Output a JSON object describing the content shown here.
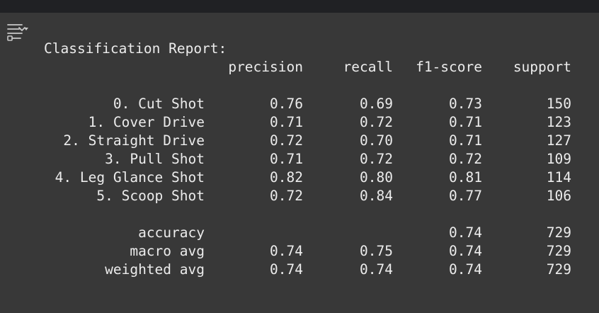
{
  "title": "Classification Report:",
  "header": {
    "precision": "precision",
    "recall": "recall",
    "f1": "f1-score",
    "support": "support"
  },
  "rows": [
    {
      "label": "0. Cut Shot",
      "precision": "0.76",
      "recall": "0.69",
      "f1": "0.73",
      "support": "150"
    },
    {
      "label": "1. Cover Drive",
      "precision": "0.71",
      "recall": "0.72",
      "f1": "0.71",
      "support": "123"
    },
    {
      "label": "2. Straight Drive",
      "precision": "0.72",
      "recall": "0.70",
      "f1": "0.71",
      "support": "127"
    },
    {
      "label": "3. Pull Shot",
      "precision": "0.71",
      "recall": "0.72",
      "f1": "0.72",
      "support": "109"
    },
    {
      "label": "4. Leg Glance Shot",
      "precision": "0.82",
      "recall": "0.80",
      "f1": "0.81",
      "support": "114"
    },
    {
      "label": "5. Scoop Shot",
      "precision": "0.72",
      "recall": "0.84",
      "f1": "0.77",
      "support": "106"
    }
  ],
  "summary": [
    {
      "label": "accuracy",
      "precision": "",
      "recall": "",
      "f1": "0.74",
      "support": "729"
    },
    {
      "label": "macro avg",
      "precision": "0.74",
      "recall": "0.75",
      "f1": "0.74",
      "support": "729"
    },
    {
      "label": "weighted avg",
      "precision": "0.74",
      "recall": "0.74",
      "f1": "0.74",
      "support": "729"
    }
  ],
  "icons": {
    "output": "output-collapse-icon"
  },
  "colors": {
    "background": "#383838",
    "topbar": "#202124",
    "text": "#ececec"
  }
}
